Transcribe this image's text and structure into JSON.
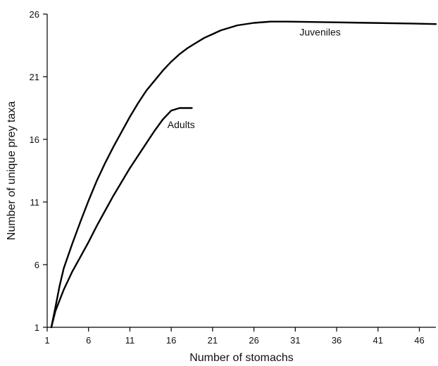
{
  "chart_data": {
    "type": "line",
    "title": "",
    "xlabel": "Number of stomachs",
    "ylabel": "Number of unique prey taxa",
    "xlim": [
      1,
      48
    ],
    "ylim": [
      1,
      26
    ],
    "x_ticks": [
      "1",
      "6",
      "11",
      "16",
      "21",
      "26",
      "31",
      "36",
      "41",
      "46"
    ],
    "y_ticks": [
      "1",
      "6",
      "11",
      "16",
      "21",
      "26"
    ],
    "grid": false,
    "legend": "none",
    "series": [
      {
        "name": "Juveniles",
        "points": [
          [
            1.5,
            1.0
          ],
          [
            2,
            2.6
          ],
          [
            2.5,
            4.3
          ],
          [
            3,
            5.7
          ],
          [
            4,
            7.6
          ],
          [
            5,
            9.4
          ],
          [
            6,
            11.1
          ],
          [
            7,
            12.7
          ],
          [
            8,
            14.1
          ],
          [
            9,
            15.4
          ],
          [
            10,
            16.6
          ],
          [
            11,
            17.8
          ],
          [
            12,
            18.9
          ],
          [
            13,
            19.9
          ],
          [
            14,
            20.7
          ],
          [
            15,
            21.5
          ],
          [
            16,
            22.2
          ],
          [
            17,
            22.8
          ],
          [
            18,
            23.3
          ],
          [
            19,
            23.7
          ],
          [
            20,
            24.1
          ],
          [
            21,
            24.4
          ],
          [
            22,
            24.7
          ],
          [
            24,
            25.1
          ],
          [
            26,
            25.3
          ],
          [
            28,
            25.4
          ],
          [
            30,
            25.4
          ],
          [
            35,
            25.35
          ],
          [
            40,
            25.3
          ],
          [
            45,
            25.25
          ],
          [
            48,
            25.2
          ]
        ]
      },
      {
        "name": "Adults",
        "points": [
          [
            1.5,
            1.0
          ],
          [
            2,
            2.3
          ],
          [
            3,
            4.0
          ],
          [
            4,
            5.4
          ],
          [
            5,
            6.6
          ],
          [
            6,
            7.8
          ],
          [
            7,
            9.1
          ],
          [
            8,
            10.3
          ],
          [
            9,
            11.5
          ],
          [
            10,
            12.6
          ],
          [
            11,
            13.7
          ],
          [
            12,
            14.7
          ],
          [
            13,
            15.7
          ],
          [
            14,
            16.7
          ],
          [
            15,
            17.6
          ],
          [
            16,
            18.3
          ],
          [
            17,
            18.5
          ],
          [
            18.5,
            18.5
          ]
        ]
      }
    ],
    "annotations": [
      {
        "text": "Juveniles",
        "x": 34,
        "y": 24.3
      },
      {
        "text": "Adults",
        "x": 17.2,
        "y": 16.9
      }
    ]
  }
}
